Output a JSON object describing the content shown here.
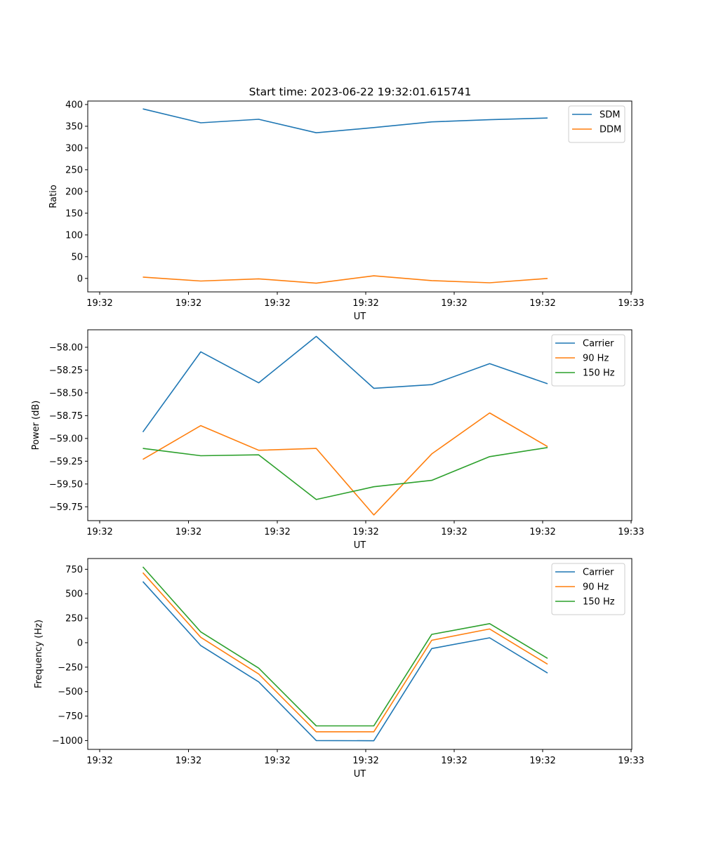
{
  "title": "Start time: 2023-06-22 19:32:01.615741",
  "chart_data": [
    {
      "type": "line",
      "title": "Start time: 2023-06-22 19:32:01.615741",
      "xlabel": "UT",
      "ylabel": "Ratio",
      "x_tick_labels": [
        "19:32",
        "19:32",
        "19:32",
        "19:32",
        "19:32",
        "19:32",
        "19:32",
        "19:33"
      ],
      "y_ticks": [
        0,
        50,
        100,
        150,
        200,
        250,
        300,
        350,
        400
      ],
      "y_tick_labels": [
        "0",
        "50",
        "100",
        "150",
        "200",
        "250",
        "300",
        "350",
        "400"
      ],
      "ylim": [
        -31,
        408
      ],
      "legend_position": "top-right",
      "series": [
        {
          "name": "SDM",
          "color": "#1f77b4",
          "values": [
            390,
            358,
            366,
            335,
            347,
            360,
            365,
            369
          ]
        },
        {
          "name": "DDM",
          "color": "#ff7f0e",
          "values": [
            3,
            -6,
            -1,
            -11,
            6,
            -5,
            -10,
            0
          ]
        }
      ]
    },
    {
      "type": "line",
      "title": "",
      "xlabel": "UT",
      "ylabel": "Power (dB)",
      "x_tick_labels": [
        "19:32",
        "19:32",
        "19:32",
        "19:32",
        "19:32",
        "19:32",
        "19:32",
        "19:33"
      ],
      "y_ticks": [
        -59.75,
        -59.5,
        -59.25,
        -59.0,
        -58.75,
        -58.5,
        -58.25,
        -58.0
      ],
      "y_tick_labels": [
        "−59.75",
        "−59.50",
        "−59.25",
        "−59.00",
        "−58.75",
        "−58.50",
        "−58.25",
        "−58.00"
      ],
      "ylim": [
        -59.902,
        -57.808
      ],
      "legend_position": "top-right",
      "series": [
        {
          "name": "Carrier",
          "color": "#1f77b4",
          "values": [
            -58.93,
            -58.05,
            -58.39,
            -57.88,
            -58.45,
            -58.41,
            -58.18,
            -58.4
          ]
        },
        {
          "name": "90 Hz",
          "color": "#ff7f0e",
          "values": [
            -59.23,
            -58.86,
            -59.13,
            -59.11,
            -59.84,
            -59.17,
            -58.72,
            -59.09
          ]
        },
        {
          "name": "150 Hz",
          "color": "#2ca02c",
          "values": [
            -59.11,
            -59.19,
            -59.18,
            -59.67,
            -59.53,
            -59.46,
            -59.2,
            -59.1
          ]
        }
      ]
    },
    {
      "type": "line",
      "title": "",
      "xlabel": "UT",
      "ylabel": "Frequency (Hz)",
      "x_tick_labels": [
        "19:32",
        "19:32",
        "19:32",
        "19:32",
        "19:32",
        "19:32",
        "19:32",
        "19:33"
      ],
      "y_ticks": [
        -1000,
        -750,
        -500,
        -250,
        0,
        250,
        500,
        750
      ],
      "y_tick_labels": [
        "−1000",
        "−750",
        "−500",
        "−250",
        "0",
        "250",
        "500",
        "750"
      ],
      "ylim": [
        -1090,
        860
      ],
      "legend_position": "top-right",
      "series": [
        {
          "name": "Carrier",
          "color": "#1f77b4",
          "values": [
            625,
            -30,
            -400,
            -1000,
            -1002,
            -60,
            50,
            -310
          ]
        },
        {
          "name": "90 Hz",
          "color": "#ff7f0e",
          "values": [
            715,
            55,
            -320,
            -910,
            -910,
            25,
            140,
            -220
          ]
        },
        {
          "name": "150 Hz",
          "color": "#2ca02c",
          "values": [
            775,
            110,
            -260,
            -850,
            -850,
            85,
            195,
            -160
          ]
        }
      ]
    }
  ]
}
